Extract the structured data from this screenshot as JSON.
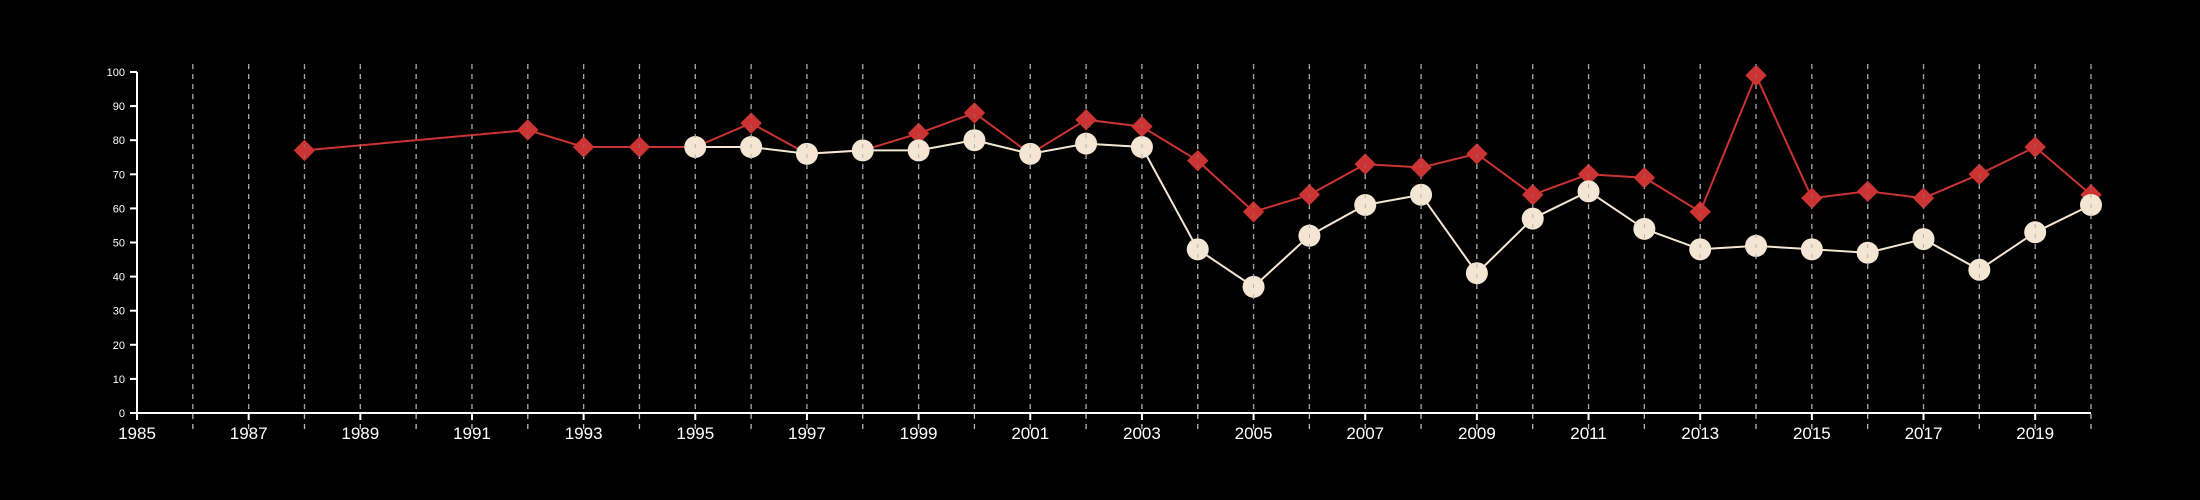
{
  "chart_data": {
    "type": "line",
    "title": "",
    "xlabel": "",
    "ylabel": "",
    "xlim": [
      1985,
      2020
    ],
    "ylim": [
      0,
      100
    ],
    "x_ticks": [
      "1985",
      "1987",
      "1989",
      "1991",
      "1993",
      "1995",
      "1997",
      "1999",
      "2001",
      "2003",
      "2005",
      "2007",
      "2009",
      "2011",
      "2013",
      "2015",
      "2017",
      "2019"
    ],
    "y_ticks": [
      "0",
      "10",
      "20",
      "30",
      "40",
      "50",
      "60",
      "70",
      "80",
      "90",
      "100"
    ],
    "grid": "vertical dashed lines at every year",
    "legend": "none",
    "x": [
      1988,
      1992,
      1993,
      1994,
      1995,
      1996,
      1997,
      1998,
      1999,
      2000,
      2001,
      2002,
      2003,
      2004,
      2005,
      2006,
      2007,
      2008,
      2009,
      2010,
      2011,
      2012,
      2013,
      2014,
      2015,
      2016,
      2017,
      2018,
      2019,
      2020
    ],
    "series": [
      {
        "color": "#cc3333",
        "marker": "diamond",
        "values": [
          77,
          83,
          78,
          78,
          78,
          85,
          76,
          77,
          82,
          88,
          76,
          86,
          84,
          74,
          59,
          64,
          73,
          72,
          76,
          64,
          70,
          69,
          59,
          99,
          63,
          65,
          63,
          70,
          78,
          64
        ]
      },
      {
        "color": "#f5e6d3",
        "marker": "circle",
        "values": [
          null,
          null,
          null,
          null,
          78,
          78,
          76,
          77,
          77,
          80,
          76,
          79,
          78,
          48,
          37,
          52,
          61,
          64,
          41,
          57,
          65,
          54,
          48,
          49,
          48,
          47,
          51,
          42,
          53,
          61
        ]
      }
    ]
  }
}
